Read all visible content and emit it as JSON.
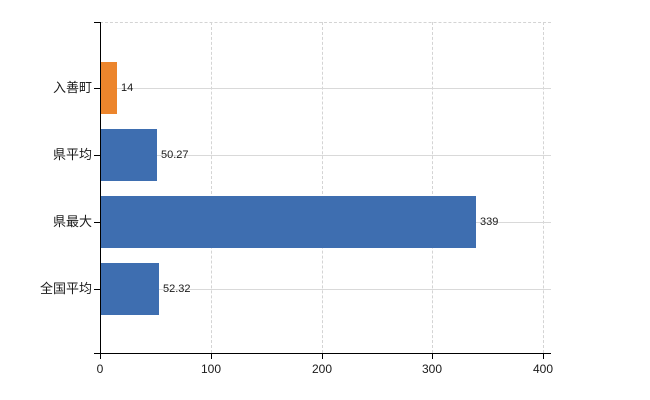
{
  "chart_data": {
    "type": "bar",
    "orientation": "horizontal",
    "title": "",
    "xlabel": "",
    "ylabel": "",
    "categories": [
      "入善町",
      "県平均",
      "県最大",
      "全国平均"
    ],
    "values": [
      14,
      50.27,
      339,
      52.32
    ],
    "value_labels": [
      "14",
      "50.27",
      "339",
      "52.32"
    ],
    "bar_colors": [
      "#ec852c",
      "#3e6eb0",
      "#3e6eb0",
      "#3e6eb0"
    ],
    "xlim": [
      0,
      400
    ],
    "x_ticks": [
      0,
      100,
      200,
      300,
      400
    ],
    "x_tick_labels": [
      "0",
      "100",
      "200",
      "300",
      "400"
    ],
    "grid": true,
    "legend": false
  },
  "colors": {
    "background": "#ffffff",
    "axis": "#000000",
    "gridline_horizontal": "#d9d9d9",
    "gridline_vertical": "#d4d4d4",
    "text": "#1a1a1a",
    "accent_orange": "#ec852c",
    "accent_blue": "#3e6eb0"
  }
}
